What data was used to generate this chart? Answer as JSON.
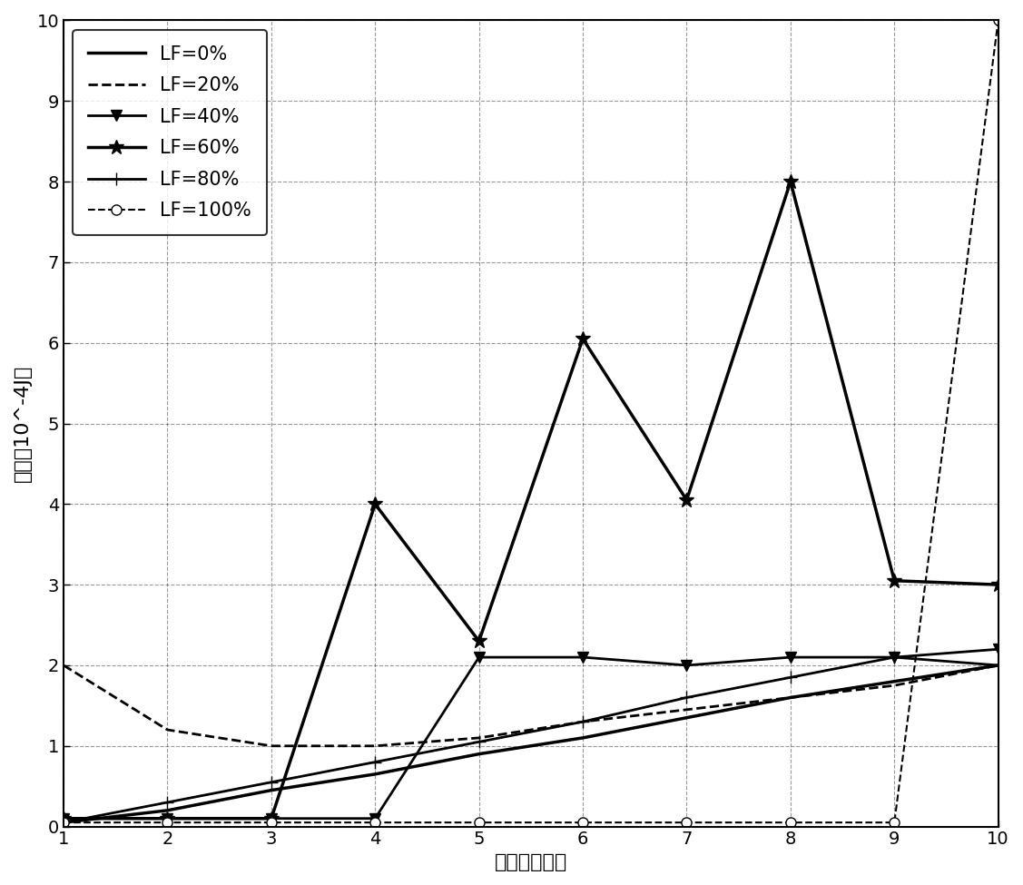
{
  "x": [
    1,
    2,
    3,
    4,
    5,
    6,
    7,
    8,
    9,
    10
  ],
  "series_order": [
    "LF=0%",
    "LF=20%",
    "LF=40%",
    "LF=60%",
    "LF=80%",
    "LF=100%"
  ],
  "series": {
    "LF=0%": {
      "y": [
        0.05,
        0.2,
        0.45,
        0.65,
        0.9,
        1.1,
        1.35,
        1.6,
        1.8,
        2.0
      ],
      "linestyle": "-",
      "marker": "None",
      "markersize": 6,
      "linewidth": 2.5,
      "color": "#000000",
      "markerfacecolor": "#000000",
      "markeredgecolor": "#000000"
    },
    "LF=20%": {
      "y": [
        2.0,
        1.2,
        1.0,
        1.0,
        1.1,
        1.3,
        1.45,
        1.6,
        1.75,
        2.0
      ],
      "linestyle": "--",
      "marker": "None",
      "markersize": 6,
      "linewidth": 2.0,
      "color": "#000000",
      "markerfacecolor": "#000000",
      "markeredgecolor": "#000000"
    },
    "LF=40%": {
      "y": [
        0.1,
        0.1,
        0.1,
        0.1,
        2.1,
        2.1,
        2.0,
        2.1,
        2.1,
        2.2
      ],
      "linestyle": "-",
      "marker": "v",
      "markersize": 9,
      "linewidth": 2.0,
      "color": "#000000",
      "markerfacecolor": "#000000",
      "markeredgecolor": "#000000"
    },
    "LF=60%": {
      "y": [
        0.1,
        0.1,
        0.1,
        4.0,
        2.3,
        6.05,
        4.05,
        8.0,
        3.05,
        3.0
      ],
      "linestyle": "-",
      "marker": "*",
      "markersize": 12,
      "linewidth": 2.5,
      "color": "#000000",
      "markerfacecolor": "#000000",
      "markeredgecolor": "#000000"
    },
    "LF=80%": {
      "y": [
        0.05,
        0.3,
        0.55,
        0.8,
        1.05,
        1.3,
        1.6,
        1.85,
        2.1,
        2.0
      ],
      "linestyle": "-",
      "marker": "+",
      "markersize": 10,
      "linewidth": 2.0,
      "color": "#000000",
      "markerfacecolor": "#000000",
      "markeredgecolor": "#000000"
    },
    "LF=100%": {
      "y": [
        0.05,
        0.05,
        0.05,
        0.05,
        0.05,
        0.05,
        0.05,
        0.05,
        0.05,
        10.0
      ],
      "linestyle": "--",
      "marker": "o",
      "markersize": 8,
      "linewidth": 1.5,
      "color": "#000000",
      "markerfacecolor": "#ffffff",
      "markeredgecolor": "#000000"
    }
  },
  "xlabel": "激活子帧个数",
  "ylabel": "能耗（10^-4J）",
  "xlim": [
    1,
    10
  ],
  "ylim": [
    0,
    10
  ],
  "xticks": [
    1,
    2,
    3,
    4,
    5,
    6,
    7,
    8,
    9,
    10
  ],
  "yticks": [
    0,
    1,
    2,
    3,
    4,
    5,
    6,
    7,
    8,
    9,
    10
  ],
  "grid_color": "#000000",
  "grid_linestyle": "--",
  "grid_alpha": 0.4,
  "background_color": "#ffffff",
  "legend_loc": "upper left",
  "legend_fontsize": 15,
  "tick_fontsize": 14,
  "label_fontsize": 16
}
